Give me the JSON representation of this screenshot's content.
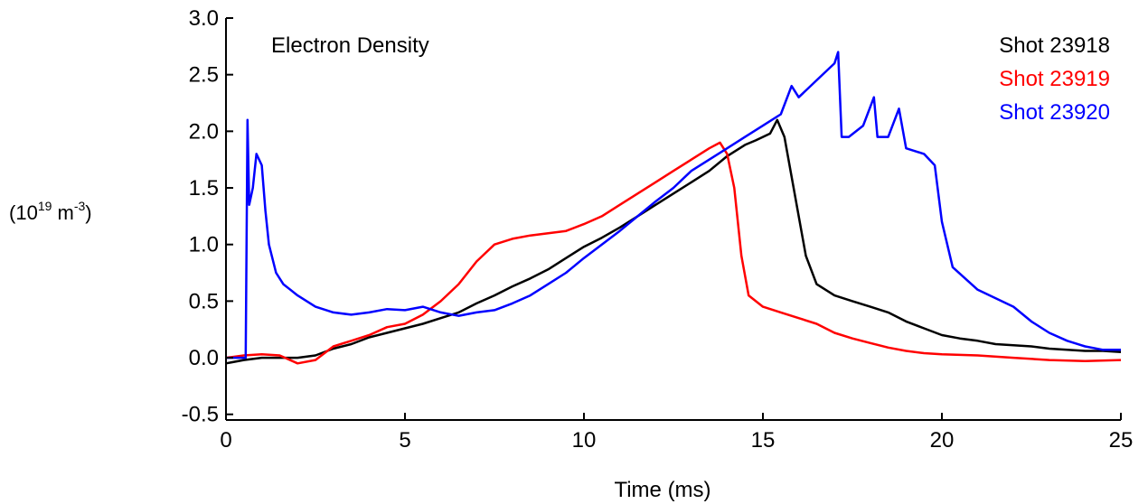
{
  "chart_data": {
    "type": "line",
    "title": "Electron Density",
    "xlabel": "Time (ms)",
    "ylabel": {
      "base": "10",
      "exp": "19",
      "unit": "m",
      "unit_exp": "-3"
    },
    "xlim": [
      0,
      25
    ],
    "ylim": [
      -0.55,
      3.0
    ],
    "xticks": [
      0,
      5,
      10,
      15,
      20,
      25
    ],
    "xtick_labels": [
      "0",
      "5",
      "10",
      "15",
      "20",
      "25"
    ],
    "yticks": [
      -0.5,
      0.0,
      0.5,
      1.0,
      1.5,
      2.0,
      2.5,
      3.0
    ],
    "ytick_labels": [
      "-0.5",
      "0.0",
      "0.5",
      "1.0",
      "1.5",
      "2.0",
      "2.5",
      "3.0"
    ],
    "grid": false,
    "legend": "top-right",
    "series": [
      {
        "name": "Shot 23918",
        "color": "#000000",
        "x": [
          0,
          0.5,
          1,
          1.5,
          2,
          2.5,
          3,
          3.5,
          4,
          4.5,
          5,
          5.5,
          6,
          6.5,
          7,
          7.5,
          8,
          8.5,
          9,
          9.5,
          10,
          10.5,
          11,
          11.5,
          12,
          12.5,
          13,
          13.5,
          14,
          14.5,
          14.8,
          15,
          15.2,
          15.4,
          15.6,
          15.8,
          16,
          16.2,
          16.5,
          17,
          17.5,
          18,
          18.5,
          19,
          19.5,
          20,
          20.5,
          21,
          21.5,
          22,
          22.5,
          23,
          23.5,
          24,
          24.5,
          25
        ],
        "y": [
          -0.05,
          -0.02,
          0.0,
          0.0,
          0.0,
          0.02,
          0.08,
          0.12,
          0.18,
          0.22,
          0.26,
          0.3,
          0.35,
          0.4,
          0.48,
          0.55,
          0.63,
          0.7,
          0.78,
          0.88,
          0.98,
          1.06,
          1.15,
          1.25,
          1.35,
          1.45,
          1.55,
          1.65,
          1.78,
          1.88,
          1.92,
          1.95,
          1.98,
          2.1,
          1.95,
          1.6,
          1.25,
          0.9,
          0.65,
          0.55,
          0.5,
          0.45,
          0.4,
          0.32,
          0.26,
          0.2,
          0.17,
          0.15,
          0.12,
          0.11,
          0.1,
          0.08,
          0.07,
          0.06,
          0.06,
          0.05
        ]
      },
      {
        "name": "Shot 23919",
        "color": "#ff0000",
        "x": [
          0,
          0.5,
          1,
          1.5,
          2,
          2.5,
          3,
          3.5,
          4,
          4.5,
          5,
          5.5,
          6,
          6.5,
          7,
          7.5,
          8,
          8.5,
          9,
          9.5,
          10,
          10.5,
          11,
          11.5,
          12,
          12.5,
          13,
          13.5,
          13.8,
          14,
          14.2,
          14.4,
          14.6,
          15,
          15.5,
          16,
          16.5,
          17,
          17.5,
          18,
          18.5,
          19,
          19.5,
          20,
          21,
          22,
          23,
          24,
          25
        ],
        "y": [
          0.0,
          0.02,
          0.03,
          0.02,
          -0.05,
          -0.02,
          0.1,
          0.15,
          0.2,
          0.27,
          0.3,
          0.38,
          0.5,
          0.65,
          0.85,
          1.0,
          1.05,
          1.08,
          1.1,
          1.12,
          1.18,
          1.25,
          1.35,
          1.45,
          1.55,
          1.65,
          1.75,
          1.85,
          1.9,
          1.8,
          1.5,
          0.9,
          0.55,
          0.45,
          0.4,
          0.35,
          0.3,
          0.22,
          0.17,
          0.13,
          0.09,
          0.06,
          0.04,
          0.03,
          0.02,
          0.0,
          -0.02,
          -0.03,
          -0.02
        ]
      },
      {
        "name": "Shot 23920",
        "color": "#0000ff",
        "x": [
          0,
          0.3,
          0.55,
          0.6,
          0.65,
          0.75,
          0.85,
          1.0,
          1.1,
          1.2,
          1.4,
          1.6,
          1.8,
          2.0,
          2.5,
          3.0,
          3.5,
          4.0,
          4.5,
          5.0,
          5.5,
          6.0,
          6.5,
          7.0,
          7.5,
          8.0,
          8.5,
          9.0,
          9.5,
          10.0,
          10.5,
          11.0,
          11.5,
          12.0,
          12.5,
          13.0,
          13.5,
          14.0,
          14.5,
          15.0,
          15.5,
          15.8,
          16.0,
          16.5,
          17.0,
          17.1,
          17.2,
          17.4,
          17.8,
          18.1,
          18.2,
          18.5,
          18.8,
          19.0,
          19.5,
          19.8,
          20.0,
          20.3,
          21.0,
          22.0,
          22.5,
          23.0,
          23.5,
          24.0,
          24.5,
          25.0
        ],
        "y": [
          0.0,
          0.0,
          0.0,
          2.1,
          1.35,
          1.5,
          1.8,
          1.7,
          1.3,
          1.0,
          0.75,
          0.65,
          0.6,
          0.55,
          0.45,
          0.4,
          0.38,
          0.4,
          0.43,
          0.42,
          0.45,
          0.4,
          0.37,
          0.4,
          0.42,
          0.48,
          0.55,
          0.65,
          0.75,
          0.88,
          1.0,
          1.12,
          1.25,
          1.38,
          1.5,
          1.65,
          1.75,
          1.85,
          1.95,
          2.05,
          2.15,
          2.4,
          2.3,
          2.45,
          2.6,
          2.7,
          1.95,
          1.95,
          2.05,
          2.3,
          1.95,
          1.95,
          2.2,
          1.85,
          1.8,
          1.7,
          1.2,
          0.8,
          0.6,
          0.45,
          0.32,
          0.22,
          0.15,
          0.1,
          0.07,
          0.07
        ]
      }
    ]
  }
}
